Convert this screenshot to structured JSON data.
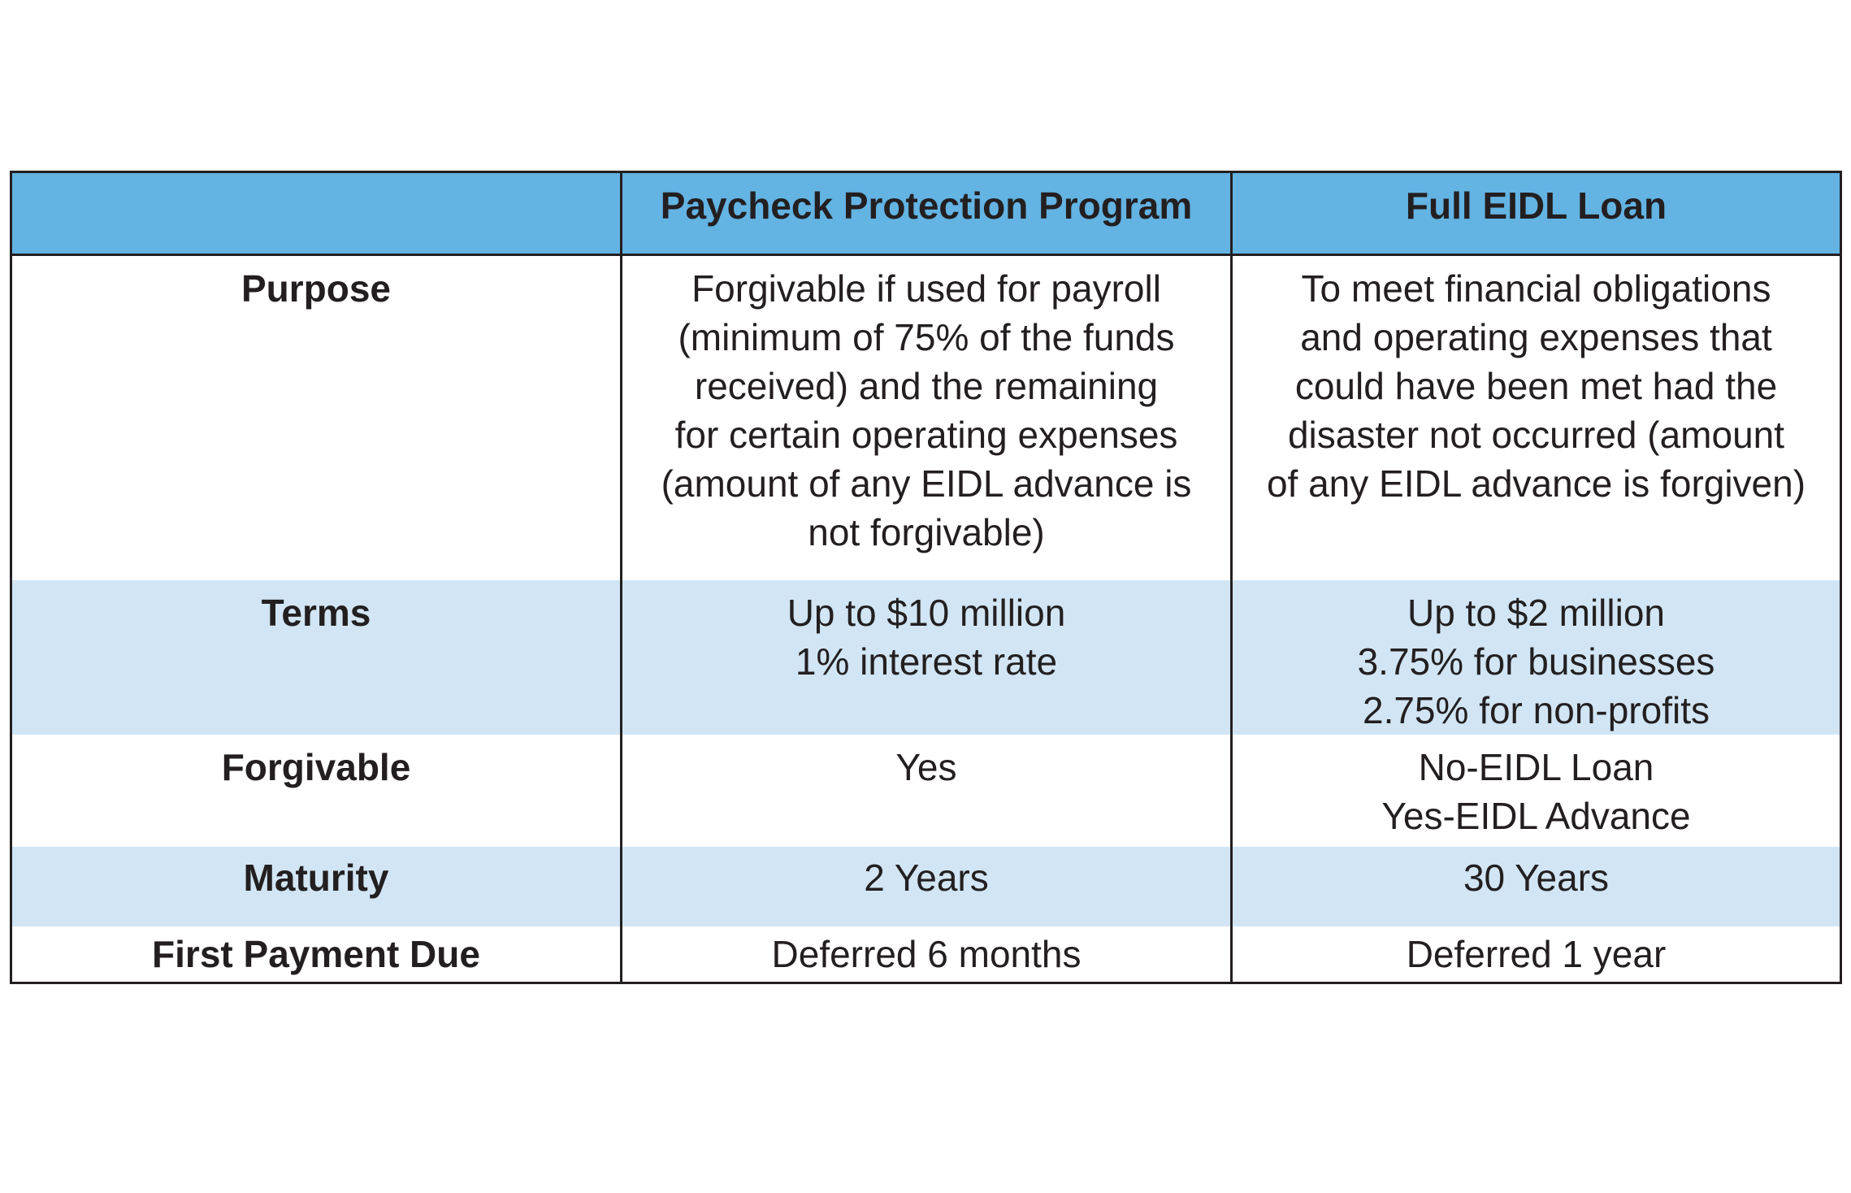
{
  "table": {
    "headers": [
      "",
      "Paycheck Protection Program",
      "Full EIDL Loan"
    ],
    "rows": [
      {
        "label": "Purpose",
        "ppp": [
          "Forgivable if used for payroll",
          "(minimum of 75% of the funds",
          "received) and the remaining",
          "for certain operating expenses",
          "(amount of any EIDL advance is",
          "not forgivable)"
        ],
        "eidl": [
          "To meet financial obligations",
          "and operating expenses that",
          "could have been met had the",
          "disaster not occurred (amount",
          "of any EIDL advance is forgiven)"
        ]
      },
      {
        "label": "Terms",
        "ppp": [
          "Up to $10 million",
          "1% interest rate"
        ],
        "eidl": [
          "Up to $2 million",
          "3.75% for businesses",
          "2.75% for non-profits"
        ]
      },
      {
        "label": "Forgivable",
        "ppp": [
          "Yes"
        ],
        "eidl": [
          "No-EIDL Loan",
          "Yes-EIDL Advance"
        ]
      },
      {
        "label": "Maturity",
        "ppp": [
          "2 Years"
        ],
        "eidl": [
          "30 Years"
        ]
      },
      {
        "label": "First Payment Due",
        "ppp": [
          "Deferred 6 months"
        ],
        "eidl": [
          "Deferred 1 year"
        ]
      }
    ]
  },
  "colors": {
    "header_bg": "#63b3e3",
    "band_bg": "#d1e5f4",
    "border": "#231f20",
    "text": "#231f20"
  }
}
